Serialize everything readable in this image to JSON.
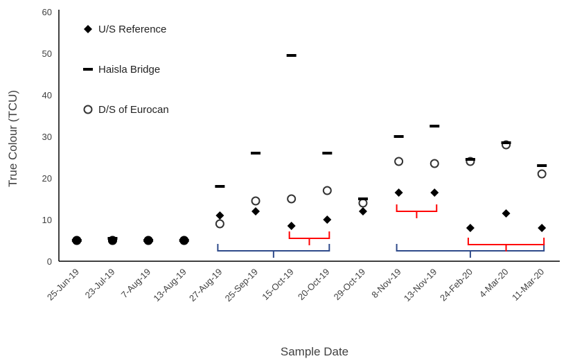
{
  "chart_data": {
    "type": "scatter",
    "title": "",
    "xlabel": "Sample Date",
    "ylabel": "True Colour (TCU)",
    "ylim": [
      0,
      60
    ],
    "yticks": [
      0,
      10,
      20,
      30,
      40,
      50,
      60
    ],
    "categories": [
      "25-Jun-19",
      "23-Jul-19",
      "7-Aug-19",
      "13-Aug-19",
      "27-Aug-19",
      "25-Sep-19",
      "15-Oct-19",
      "20-Oct-19",
      "29-Oct-19",
      "8-Nov-19",
      "13-Nov-19",
      "24-Feb-20",
      "4-Mar-20",
      "11-Mar-20"
    ],
    "legend_position": "top-left",
    "grid": false,
    "series": [
      {
        "name": "U/S Reference",
        "marker": "diamond",
        "color": "#000000",
        "values": [
          5,
          5,
          5,
          5,
          11,
          12,
          8.5,
          10,
          12,
          16.5,
          16.5,
          8,
          11.5,
          8
        ]
      },
      {
        "name": "Haisla Bridge",
        "marker": "dash",
        "color": "#000000",
        "values": [
          5,
          5.5,
          5,
          5,
          18,
          26,
          49.5,
          26,
          15,
          30,
          32.5,
          24.5,
          28.5,
          23
        ]
      },
      {
        "name": "D/S of Eurocan",
        "marker": "open-circle",
        "color": "#000000",
        "values": [
          5,
          5,
          5,
          5,
          9,
          14.5,
          15,
          17,
          14,
          24,
          23.5,
          24,
          28,
          21
        ]
      }
    ],
    "brackets": [
      {
        "color": "#2e4a8a",
        "from": "27-Aug-19",
        "to": "20-Oct-19",
        "level": 2.5
      },
      {
        "color": "#ff0000",
        "from": "15-Oct-19",
        "to": "20-Oct-19",
        "level": 5.5
      },
      {
        "color": "#ff0000",
        "from": "8-Nov-19",
        "to": "13-Nov-19",
        "level": 12
      },
      {
        "color": "#2e4a8a",
        "from": "8-Nov-19",
        "to": "11-Mar-20",
        "level": 2.5
      },
      {
        "color": "#ff0000",
        "from": "24-Feb-20",
        "to": "11-Mar-20",
        "level": 4
      }
    ]
  }
}
